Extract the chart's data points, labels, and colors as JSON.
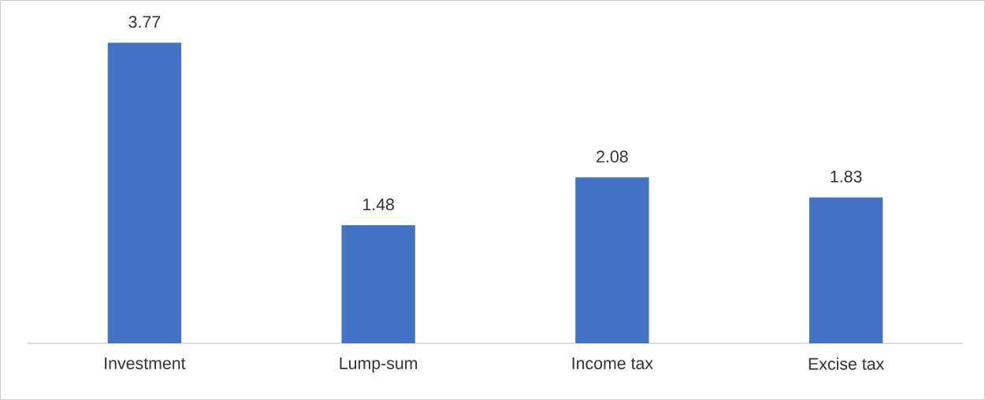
{
  "chart_data": {
    "type": "bar",
    "categories": [
      "Investment",
      "Lump-sum",
      "Income tax",
      "Excise tax"
    ],
    "values": [
      3.77,
      1.48,
      2.08,
      1.83
    ],
    "color": "#4472c4",
    "data_labels": true
  }
}
